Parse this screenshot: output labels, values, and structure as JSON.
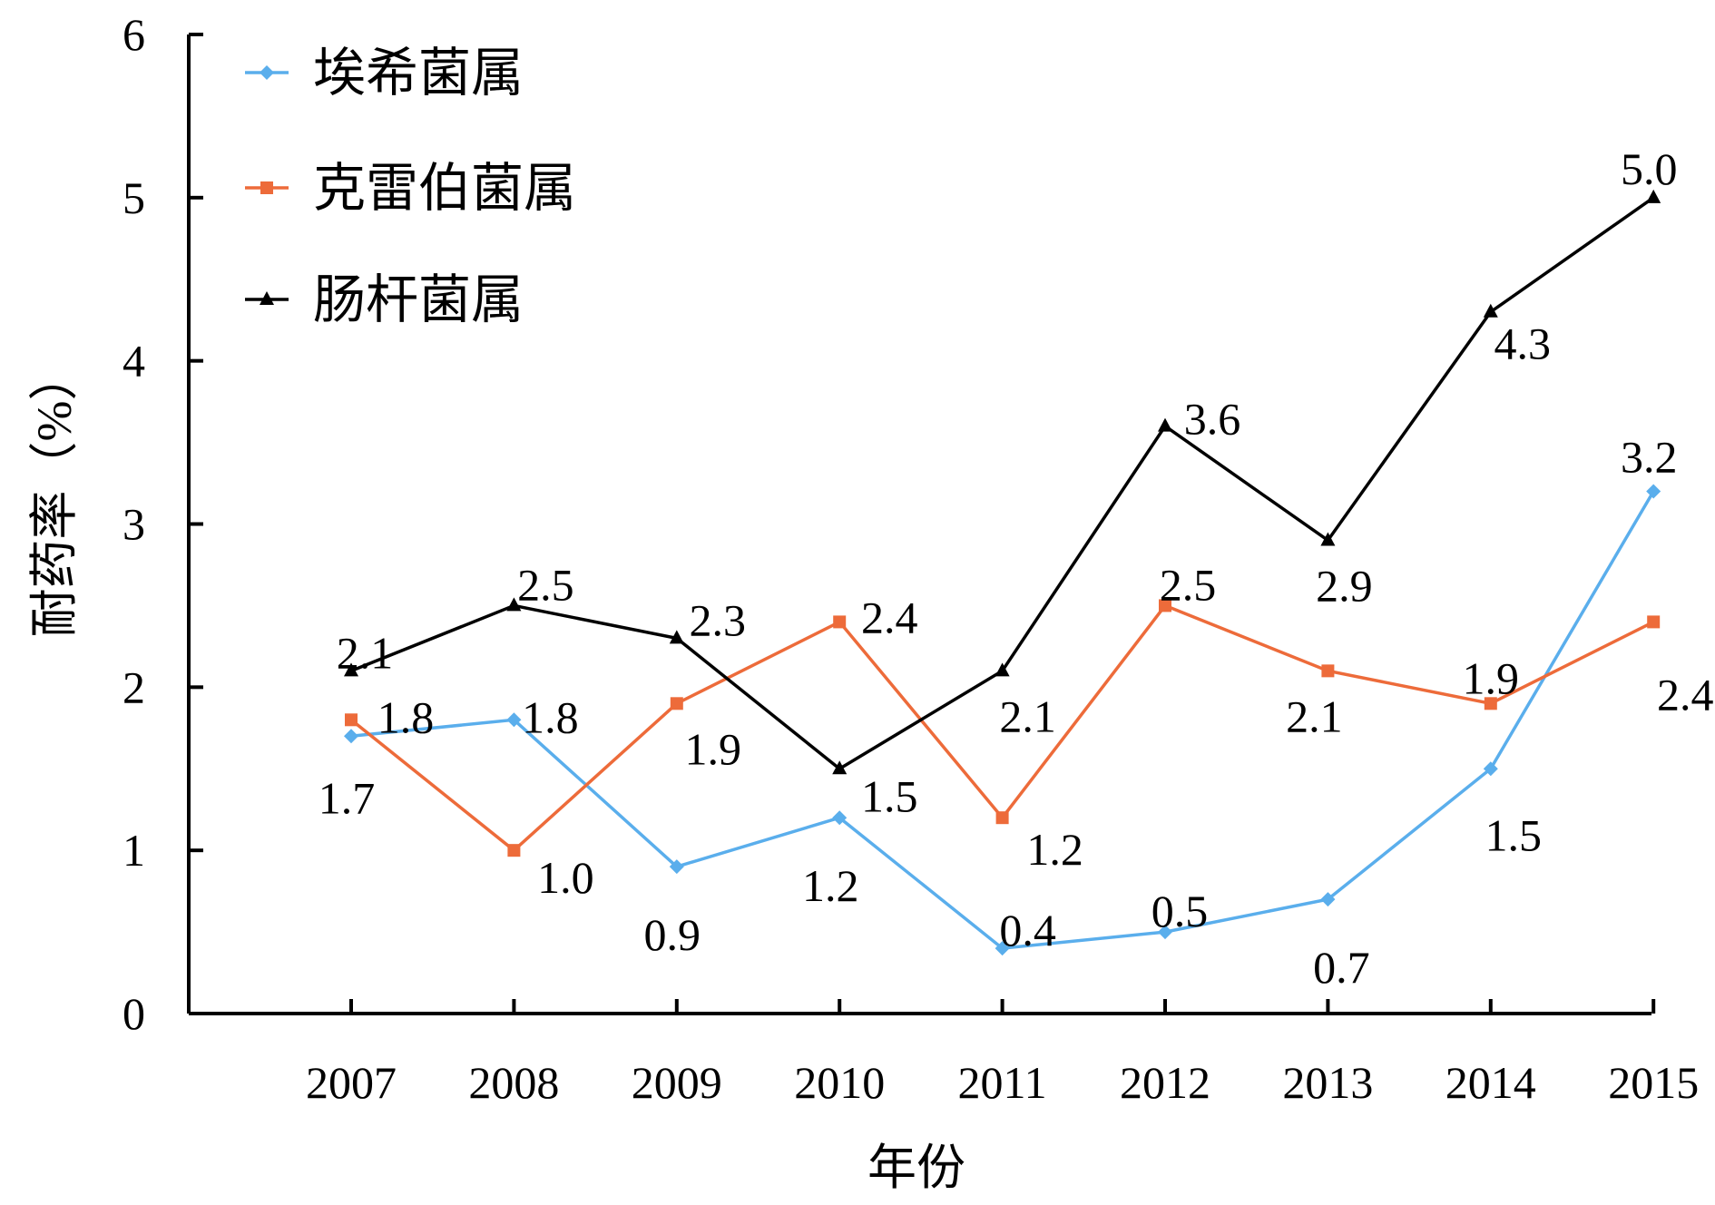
{
  "chart_data": {
    "type": "line",
    "xlabel": "年份",
    "ylabel": "耐药率（%）",
    "categories": [
      "2007",
      "2008",
      "2009",
      "2010",
      "2011",
      "2012",
      "2013",
      "2014",
      "2015"
    ],
    "ylim": [
      0,
      6
    ],
    "yticks": [
      "0",
      "1",
      "2",
      "3",
      "4",
      "5",
      "6"
    ],
    "grid": false,
    "legend_position": "top-left",
    "series": [
      {
        "name": "埃希菌属",
        "color": "#5aaeec",
        "marker": "diamond",
        "values": [
          1.7,
          1.8,
          0.9,
          1.2,
          0.4,
          0.5,
          0.7,
          1.5,
          3.2
        ],
        "labels": [
          "1.7",
          "1.8",
          "0.9",
          "1.2",
          "0.4",
          "0.5",
          "0.7",
          "1.5",
          "3.2"
        ]
      },
      {
        "name": "克雷伯菌属",
        "color": "#ed6b3a",
        "marker": "square",
        "values": [
          1.8,
          1.0,
          1.9,
          2.4,
          1.2,
          2.5,
          2.1,
          1.9,
          2.4
        ],
        "labels": [
          "1.8",
          "1.0",
          "1.9",
          "2.4",
          "1.2",
          "2.5",
          "2.1",
          "1.9",
          "2.4"
        ]
      },
      {
        "name": "肠杆菌属",
        "color": "#000000",
        "marker": "triangle",
        "values": [
          2.1,
          2.5,
          2.3,
          1.5,
          2.1,
          3.6,
          2.9,
          4.3,
          5.0
        ],
        "labels": [
          "2.1",
          "2.5",
          "2.3",
          "1.5",
          "2.1",
          "3.6",
          "2.9",
          "4.3",
          "5.0"
        ]
      }
    ]
  }
}
